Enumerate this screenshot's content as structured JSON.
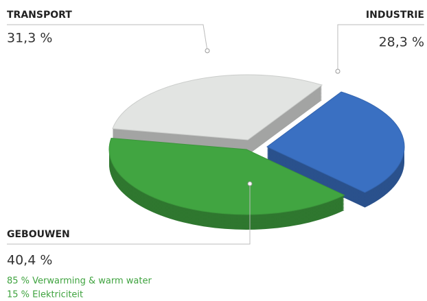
{
  "chart_data": {
    "type": "pie",
    "categories": [
      "TRANSPORT",
      "INDUSTRIE",
      "GEBOUWEN"
    ],
    "values": [
      31.3,
      28.3,
      40.4
    ],
    "value_labels": [
      "31,3 %",
      "28,3 %",
      "40,4 %"
    ],
    "colors": [
      "#e2e4e2",
      "#3a70c2",
      "#41a541"
    ],
    "annotations": [
      "85 % Verwarming & warm water",
      "15 % Elektriciteit"
    ]
  }
}
